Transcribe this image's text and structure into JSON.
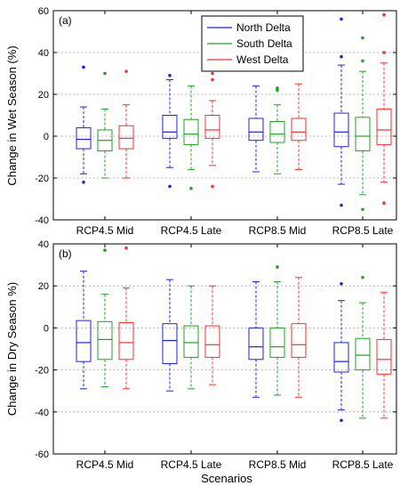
{
  "figure": {
    "xlabel": "Scenarios",
    "categories": [
      "RCP4.5 Mid",
      "RCP4.5 Late",
      "RCP8.5 Mid",
      "RCP8.5 Late"
    ],
    "series_names": [
      "North Delta",
      "South Delta",
      "West Delta"
    ],
    "series_colors": [
      "#2222dd",
      "#22a022",
      "#ee3333"
    ]
  },
  "chart_data": [
    {
      "type": "box",
      "panel_label": "(a)",
      "ylabel": "Change in Wet Season (%)",
      "ylim": [
        -40,
        60
      ],
      "yticks": [
        -40,
        -20,
        0,
        20,
        40,
        60
      ],
      "grid": "horizontal dotted",
      "legend": {
        "placement": "top-center",
        "entries": [
          "North Delta",
          "South Delta",
          "West Delta"
        ]
      },
      "categories": [
        "RCP4.5 Mid",
        "RCP4.5 Late",
        "RCP8.5 Mid",
        "RCP8.5 Late"
      ],
      "series": [
        {
          "name": "North Delta",
          "color": "#2222dd",
          "boxes": [
            {
              "category": "RCP4.5 Mid",
              "whisker_low": -18,
              "q1": -6,
              "median": -1.5,
              "q3": 4,
              "whisker_high": 14,
              "outliers": [
                -22,
                33
              ]
            },
            {
              "category": "RCP4.5 Late",
              "whisker_low": -15,
              "q1": -1,
              "median": 2,
              "q3": 10,
              "whisker_high": 27,
              "outliers": [
                -24,
                29
              ]
            },
            {
              "category": "RCP8.5 Mid",
              "whisker_low": -17,
              "q1": -2,
              "median": 2,
              "q3": 8.5,
              "whisker_high": 24,
              "outliers": []
            },
            {
              "category": "RCP8.5 Late",
              "whisker_low": -23,
              "q1": -5,
              "median": 2,
              "q3": 11,
              "whisker_high": 34,
              "outliers": [
                -33,
                38,
                56
              ]
            }
          ]
        },
        {
          "name": "South Delta",
          "color": "#22a022",
          "boxes": [
            {
              "category": "RCP4.5 Mid",
              "whisker_low": -20,
              "q1": -7,
              "median": -2,
              "q3": 3,
              "whisker_high": 13,
              "outliers": [
                30
              ]
            },
            {
              "category": "RCP4.5 Late",
              "whisker_low": -16,
              "q1": -4,
              "median": 1,
              "q3": 8,
              "whisker_high": 24,
              "outliers": [
                -25
              ]
            },
            {
              "category": "RCP8.5 Mid",
              "whisker_low": -18,
              "q1": -3,
              "median": 1,
              "q3": 7,
              "whisker_high": 15,
              "outliers": [
                22,
                23
              ]
            },
            {
              "category": "RCP8.5 Late",
              "whisker_low": -28,
              "q1": -7,
              "median": 0,
              "q3": 9,
              "whisker_high": 31,
              "outliers": [
                -35,
                36,
                47
              ]
            }
          ]
        },
        {
          "name": "West Delta",
          "color": "#ee3333",
          "boxes": [
            {
              "category": "RCP4.5 Mid",
              "whisker_low": -20,
              "q1": -6,
              "median": -1,
              "q3": 5,
              "whisker_high": 15,
              "outliers": [
                31
              ]
            },
            {
              "category": "RCP4.5 Late",
              "whisker_low": -14,
              "q1": -1,
              "median": 3,
              "q3": 10,
              "whisker_high": 17,
              "outliers": [
                -24,
                27,
                30
              ]
            },
            {
              "category": "RCP8.5 Mid",
              "whisker_low": -16,
              "q1": -2,
              "median": 2,
              "q3": 8.5,
              "whisker_high": 25,
              "outliers": []
            },
            {
              "category": "RCP8.5 Late",
              "whisker_low": -22,
              "q1": -4,
              "median": 3,
              "q3": 13,
              "whisker_high": 35,
              "outliers": [
                -32,
                40,
                58
              ]
            }
          ]
        }
      ]
    },
    {
      "type": "box",
      "panel_label": "(b)",
      "ylabel": "Change in Dry Season %)",
      "ylim": [
        -60,
        40
      ],
      "yticks": [
        -60,
        -40,
        -20,
        0,
        20,
        40
      ],
      "grid": "horizontal dotted",
      "legend": {
        "placement": "none",
        "entries": []
      },
      "categories": [
        "RCP4.5 Mid",
        "RCP4.5 Late",
        "RCP8.5 Mid",
        "RCP8.5 Late"
      ],
      "series": [
        {
          "name": "North Delta",
          "color": "#2222dd",
          "boxes": [
            {
              "category": "RCP4.5 Mid",
              "whisker_low": -29,
              "q1": -16,
              "median": -7,
              "q3": 3.5,
              "whisker_high": 27,
              "outliers": []
            },
            {
              "category": "RCP4.5 Late",
              "whisker_low": -30,
              "q1": -17,
              "median": -6,
              "q3": 2,
              "whisker_high": 23,
              "outliers": []
            },
            {
              "category": "RCP8.5 Mid",
              "whisker_low": -33,
              "q1": -15,
              "median": -9,
              "q3": 0,
              "whisker_high": 22,
              "outliers": []
            },
            {
              "category": "RCP8.5 Late",
              "whisker_low": -39,
              "q1": -21,
              "median": -16,
              "q3": -7,
              "whisker_high": 13,
              "outliers": [
                -44,
                21
              ]
            }
          ]
        },
        {
          "name": "South Delta",
          "color": "#22a022",
          "boxes": [
            {
              "category": "RCP4.5 Mid",
              "whisker_low": -28,
              "q1": -15,
              "median": -5.5,
              "q3": 3,
              "whisker_high": 16,
              "outliers": [
                37
              ]
            },
            {
              "category": "RCP4.5 Late",
              "whisker_low": -29,
              "q1": -14,
              "median": -7,
              "q3": 1,
              "whisker_high": 20,
              "outliers": []
            },
            {
              "category": "RCP8.5 Mid",
              "whisker_low": -32,
              "q1": -14,
              "median": -9,
              "q3": 0,
              "whisker_high": 22,
              "outliers": [
                29
              ]
            },
            {
              "category": "RCP8.5 Late",
              "whisker_low": -43,
              "q1": -20,
              "median": -13,
              "q3": -5,
              "whisker_high": 12,
              "outliers": [
                24
              ]
            }
          ]
        },
        {
          "name": "West Delta",
          "color": "#ee3333",
          "boxes": [
            {
              "category": "RCP4.5 Mid",
              "whisker_low": -29,
              "q1": -15,
              "median": -7,
              "q3": 2.5,
              "whisker_high": 19,
              "outliers": [
                38
              ]
            },
            {
              "category": "RCP4.5 Late",
              "whisker_low": -27,
              "q1": -14,
              "median": -8,
              "q3": 1,
              "whisker_high": 20,
              "outliers": []
            },
            {
              "category": "RCP8.5 Mid",
              "whisker_low": -33,
              "q1": -14,
              "median": -8,
              "q3": 2,
              "whisker_high": 24,
              "outliers": []
            },
            {
              "category": "RCP8.5 Late",
              "whisker_low": -43,
              "q1": -22,
              "median": -15,
              "q3": -5.5,
              "whisker_high": 17,
              "outliers": []
            }
          ]
        }
      ]
    }
  ]
}
